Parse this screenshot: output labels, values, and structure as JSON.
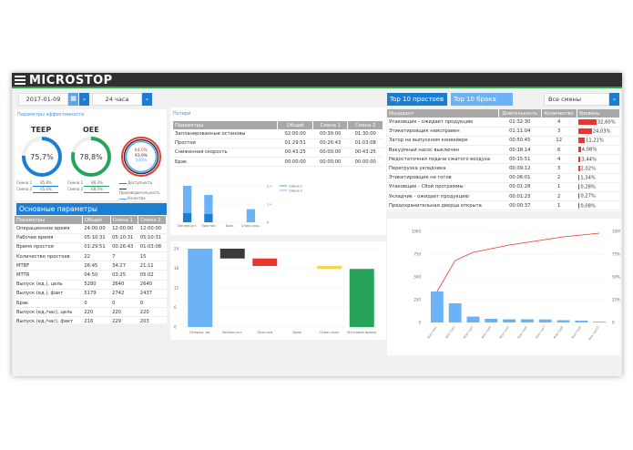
{
  "header": {
    "logo": "MICROSTOP",
    "menu_icon": "hamburger-icon"
  },
  "filters": {
    "date": "2017-01-09",
    "period": "24 часа",
    "calendar_icon": "calendar-icon",
    "shift": "Все смены"
  },
  "efficiency": {
    "link": "Параметры эффективности",
    "teep": {
      "title": "TEEP",
      "value": "75,7%",
      "percent": 75.7,
      "shift1_label": "Смена 1",
      "shift1": "85,8%",
      "shift2_label": "Смена 2",
      "shift2": "65,6%"
    },
    "oee": {
      "title": "OEE",
      "value": "78,8%",
      "percent": 78.8,
      "shift1_label": "Смена 1",
      "shift1": "89,3%",
      "shift2_label": "Смена 2",
      "shift2": "68,5%"
    },
    "factors": {
      "availability": "84,0%",
      "performance": "93,9%",
      "quality": "100%",
      "legend": [
        "Доступность",
        "Производительность",
        "Качество"
      ]
    },
    "colors": {
      "teep": "#1a7fd4",
      "oee": "#27a35a",
      "availability": "#e8382d",
      "performance": "#333333",
      "quality": "#5aa6f0"
    }
  },
  "main_params": {
    "title": "Основные параметры",
    "columns": [
      "Параметры",
      "Общий",
      "Смена 1",
      "Смена 2"
    ],
    "rows": [
      [
        "Операционное время",
        "24:00:00",
        "12:00:00",
        "12:00:00"
      ],
      [
        "Рабочее время",
        "05:10:31",
        "05:10:31",
        "05:10:31"
      ],
      [
        "Время простоя",
        "01:29:51",
        "00:26:43",
        "01:03:08"
      ],
      [
        "Количество простоев",
        "22",
        "7",
        "15"
      ],
      [
        "MTBF",
        "26:45",
        "34:27",
        "21:11"
      ],
      [
        "MTTR",
        "04:50",
        "03:25",
        "05:02"
      ],
      [
        "Выпуск (ед.), цель",
        "5280",
        "2640",
        "2640"
      ],
      [
        "Выпуск (ед.), факт",
        "5179",
        "2742",
        "2437"
      ],
      [
        "Брак",
        "0",
        "0",
        "0"
      ],
      [
        "Выпуск (ед./час), цель",
        "220",
        "220",
        "220"
      ],
      [
        "Выпуск (ед./час), факт",
        "216",
        "229",
        "203"
      ]
    ]
  },
  "losses": {
    "link": "Потери",
    "columns": [
      "Параметры",
      "Общий",
      "Смена 1",
      "Смена 2"
    ],
    "rows": [
      [
        "Запланированные остановы",
        "02:00:00",
        "00:30:00",
        "01:30:00"
      ],
      [
        "Простои",
        "01:29:51",
        "00:26:43",
        "01:03:08"
      ],
      [
        "Сниженная скорость",
        "00:43:25",
        "00:00:00",
        "00:43:25"
      ],
      [
        "Брак",
        "00:00:00",
        "00:00:00",
        "00:00:00"
      ]
    ]
  },
  "chart_data": [
    {
      "type": "bar",
      "stacked": true,
      "categories": [
        "Заплан.ост.",
        "Простои",
        "Брак",
        "Сниж.скор."
      ],
      "yticks": [
        "0",
        "1 ч",
        "2 ч"
      ],
      "ylim": [
        0,
        2
      ],
      "series": [
        {
          "name": "Смена 1",
          "values": [
            0.5,
            0.45,
            0,
            0
          ],
          "color": "#1a7fd4"
        },
        {
          "name": "Смена 2",
          "values": [
            1.5,
            1.05,
            0,
            0.72
          ],
          "color": "#6cb2f7"
        }
      ],
      "legend": "right"
    },
    {
      "type": "waterfall",
      "categories": [
        "Операц. вр.",
        "Заплан.ост.",
        "Простои",
        "Брак",
        "Сниж.скор.",
        "Итоговое время"
      ],
      "ranges": [
        [
          0,
          24
        ],
        [
          21,
          24
        ],
        [
          18.7,
          21
        ],
        [
          18.7,
          18.7
        ],
        [
          17.8,
          18.7
        ],
        [
          0,
          17.8
        ]
      ],
      "colors": [
        "#6cb2f7",
        "#3a3a3a",
        "#e8382d",
        "#e8382d",
        "#f4d64e",
        "#27a35a"
      ],
      "yticks": [
        "0",
        "6",
        "12",
        "18",
        "24"
      ],
      "ylim": [
        0,
        24
      ],
      "grid": true
    },
    {
      "type": "pareto",
      "categories": [
        "Фактор1",
        "Фактор2",
        "Фактор3",
        "Фактор4",
        "Фактор5",
        "Фактор6",
        "Фактор7",
        "Фактор8",
        "Фактор9",
        "Фактор10"
      ],
      "values": [
        340,
        210,
        65,
        40,
        35,
        35,
        33,
        25,
        20,
        8
      ],
      "cumulative_percent": [
        34,
        68,
        77,
        81,
        85,
        88,
        91,
        94,
        96,
        98
      ],
      "yticks": [
        "0",
        "250",
        "500",
        "750",
        "1000"
      ],
      "ylim": [
        0,
        1000
      ],
      "y2ticks": [
        "0",
        "25%",
        "50%",
        "75%",
        "100%"
      ],
      "y2lim": [
        0,
        100
      ],
      "bar_color": "#6cb2f7",
      "line_color": "#e8382d",
      "grid": true
    }
  ],
  "top10": {
    "tab_downtime": "Top 10 простоев",
    "tab_scrap": "Top 10 брака",
    "columns": [
      "Инцидент",
      "Длительность",
      "Количество",
      "Уровень"
    ],
    "rows": [
      [
        "Упаковщик - ожидает продукцию",
        "01:32:30",
        "4",
        "32,60%",
        32.6
      ],
      [
        "Этикетировщик неисправен",
        "01:11:04",
        "3",
        "24,03%",
        24.03
      ],
      [
        "Затор на выпускном конвейере",
        "00:50:45",
        "12",
        "11,21%",
        11.21
      ],
      [
        "Вакуумный насос выключен",
        "00:18:14",
        "6",
        "4,08%",
        4.08
      ],
      [
        "Недостаточная подача сжатого воздуха",
        "00:15:51",
        "4",
        "3,44%",
        3.44
      ],
      [
        "Перегрузка укладчика",
        "00:09:12",
        "3",
        "2,02%",
        2.02
      ],
      [
        "Этикетировщик не готов",
        "00:06:01",
        "2",
        "1,34%",
        1.34
      ],
      [
        "Упаковщик - Сбой программы",
        "00:01:28",
        "1",
        "0,28%",
        0.28
      ],
      [
        "Укладчик - ожидает продукцию",
        "00:01:23",
        "2",
        "0,27%",
        0.27
      ],
      [
        "Предохранительная дверца открыта",
        "00:00:37",
        "1",
        "0,08%",
        0.08
      ]
    ]
  }
}
